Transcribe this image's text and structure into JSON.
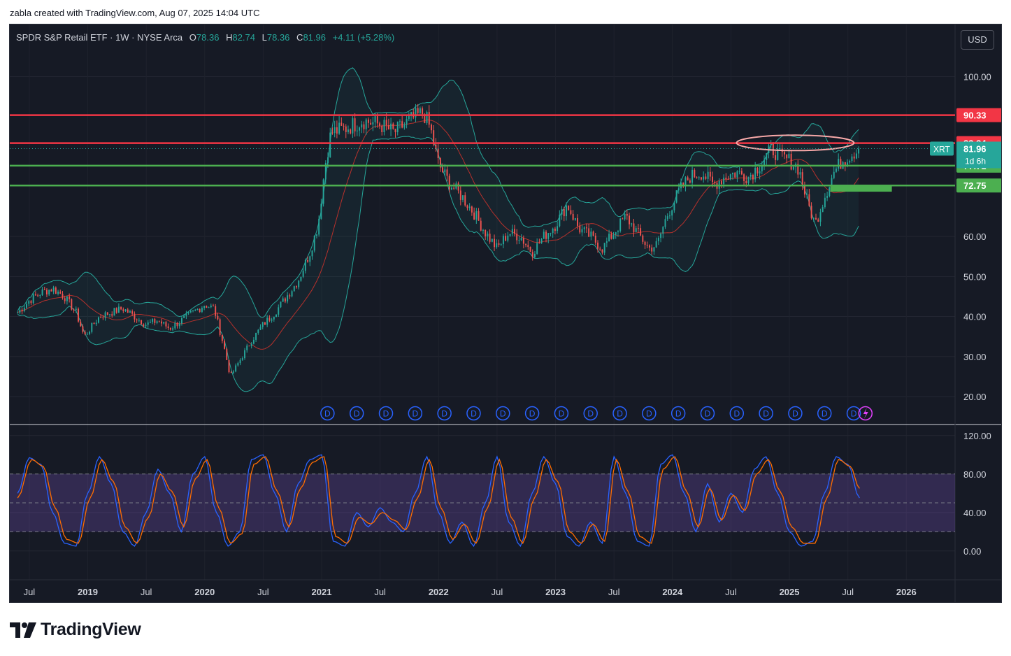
{
  "header": {
    "attribution": "zabla created with TradingView.com, Aug 07, 2025 14:04 UTC"
  },
  "legend": {
    "symbol": "SPDR S&P Retail ETF · 1W · NYSE Arca",
    "open_label": "O",
    "open": "78.36",
    "high_label": "H",
    "high": "82.74",
    "low_label": "L",
    "low": "78.36",
    "close_label": "C",
    "close": "81.96",
    "change": "+4.11 (+5.28%)"
  },
  "toolbar": {
    "currency_label": "USD"
  },
  "brand": {
    "name": "TradingView"
  },
  "colors": {
    "background": "#161a25",
    "up": "#26a69a",
    "down": "#ef5350",
    "resistance": "#f23645",
    "support": "#4caf50",
    "bollinger": "#26a69a",
    "basis": "#b7312c",
    "k_line": "#2962ff",
    "d_line": "#ff6d00",
    "rsi_band": "#7e57c2"
  },
  "chart_data": [
    {
      "type": "candlestick",
      "title": "",
      "y_ticks": [
        "100.00",
        "60.00",
        "50.00",
        "40.00",
        "30.00",
        "20.00"
      ],
      "ylim": [
        13,
        113
      ],
      "x_ticks": [
        "Jul",
        "2019",
        "Jul",
        "2020",
        "Jul",
        "2021",
        "Jul",
        "2022",
        "Jul",
        "2023",
        "Jul",
        "2024",
        "Jul",
        "2025",
        "Jul",
        "2026"
      ],
      "x_tick_dates": [
        "2018-07",
        "2019-01",
        "2019-07",
        "2020-01",
        "2020-07",
        "2021-01",
        "2021-07",
        "2022-01",
        "2022-07",
        "2023-01",
        "2023-07",
        "2024-01",
        "2024-07",
        "2025-01",
        "2025-07",
        "2026-01"
      ],
      "xlim": [
        "2018-05",
        "2026-06"
      ],
      "horizontal_levels": [
        {
          "value": 90.33,
          "label": "90.33",
          "color": "#f23645"
        },
        {
          "value": 83.34,
          "label": "83.34",
          "color": "#f23645"
        },
        {
          "value": 77.71,
          "label": "77.71",
          "color": "#4caf50"
        },
        {
          "value": 72.75,
          "label": "72.75",
          "color": "#4caf50"
        }
      ],
      "last_price": {
        "symbol": "XRT",
        "value": 81.96,
        "label": "81.96",
        "countdown": "1d 6h"
      },
      "price_series": [
        [
          2018.4,
          41
        ],
        [
          2018.5,
          44
        ],
        [
          2018.6,
          46
        ],
        [
          2018.7,
          47
        ],
        [
          2018.8,
          45
        ],
        [
          2018.9,
          41
        ],
        [
          2018.97,
          35
        ],
        [
          2019.1,
          40
        ],
        [
          2019.2,
          41
        ],
        [
          2019.3,
          42
        ],
        [
          2019.4,
          40
        ],
        [
          2019.5,
          38
        ],
        [
          2019.6,
          39
        ],
        [
          2019.7,
          37
        ],
        [
          2019.8,
          39
        ],
        [
          2019.9,
          41
        ],
        [
          2020.0,
          43
        ],
        [
          2020.08,
          42
        ],
        [
          2020.16,
          33
        ],
        [
          2020.22,
          25
        ],
        [
          2020.3,
          29
        ],
        [
          2020.4,
          34
        ],
        [
          2020.5,
          38
        ],
        [
          2020.6,
          41
        ],
        [
          2020.7,
          45
        ],
        [
          2020.8,
          49
        ],
        [
          2020.9,
          56
        ],
        [
          2020.97,
          63
        ],
        [
          2021.03,
          78
        ],
        [
          2021.08,
          86
        ],
        [
          2021.2,
          87
        ],
        [
          2021.35,
          89
        ],
        [
          2021.5,
          88
        ],
        [
          2021.62,
          86
        ],
        [
          2021.75,
          89
        ],
        [
          2021.87,
          91
        ],
        [
          2021.93,
          87
        ],
        [
          2022.0,
          78
        ],
        [
          2022.1,
          73
        ],
        [
          2022.2,
          70
        ],
        [
          2022.3,
          66
        ],
        [
          2022.4,
          61
        ],
        [
          2022.5,
          57
        ],
        [
          2022.6,
          61
        ],
        [
          2022.7,
          60
        ],
        [
          2022.8,
          56
        ],
        [
          2022.9,
          60
        ],
        [
          2023.0,
          63
        ],
        [
          2023.1,
          68
        ],
        [
          2023.2,
          62
        ],
        [
          2023.3,
          60
        ],
        [
          2023.4,
          57
        ],
        [
          2023.5,
          61
        ],
        [
          2023.6,
          65
        ],
        [
          2023.7,
          61
        ],
        [
          2023.8,
          57
        ],
        [
          2023.87,
          58
        ],
        [
          2023.95,
          65
        ],
        [
          2024.05,
          71
        ],
        [
          2024.15,
          75
        ],
        [
          2024.25,
          76
        ],
        [
          2024.35,
          73
        ],
        [
          2024.45,
          75
        ],
        [
          2024.55,
          76
        ],
        [
          2024.65,
          75
        ],
        [
          2024.75,
          78
        ],
        [
          2024.85,
          82
        ],
        [
          2024.92,
          80
        ],
        [
          2025.0,
          79
        ],
        [
          2025.08,
          77
        ],
        [
          2025.15,
          69
        ],
        [
          2025.22,
          63
        ],
        [
          2025.3,
          70
        ],
        [
          2025.38,
          76
        ],
        [
          2025.45,
          79
        ],
        [
          2025.55,
          81
        ],
        [
          2025.6,
          81.96
        ]
      ]
    },
    {
      "type": "line",
      "title": "",
      "y_ticks": [
        "120.00",
        "80.00",
        "40.00",
        "0.00"
      ],
      "ylim": [
        -30,
        130
      ],
      "band": [
        20,
        80
      ],
      "series": [
        {
          "name": "",
          "color": "#2962ff",
          "values": [
            [
              2018.4,
              60
            ],
            [
              2018.5,
              97
            ],
            [
              2018.6,
              90
            ],
            [
              2018.7,
              40
            ],
            [
              2018.8,
              8
            ],
            [
              2018.9,
              5
            ],
            [
              2019.0,
              60
            ],
            [
              2019.1,
              98
            ],
            [
              2019.2,
              70
            ],
            [
              2019.3,
              20
            ],
            [
              2019.4,
              5
            ],
            [
              2019.5,
              40
            ],
            [
              2019.6,
              85
            ],
            [
              2019.7,
              60
            ],
            [
              2019.8,
              20
            ],
            [
              2019.9,
              80
            ],
            [
              2020.0,
              98
            ],
            [
              2020.1,
              40
            ],
            [
              2020.2,
              5
            ],
            [
              2020.3,
              20
            ],
            [
              2020.4,
              95
            ],
            [
              2020.5,
              100
            ],
            [
              2020.6,
              60
            ],
            [
              2020.7,
              20
            ],
            [
              2020.8,
              70
            ],
            [
              2020.9,
              95
            ],
            [
              2021.0,
              100
            ],
            [
              2021.1,
              10
            ],
            [
              2021.2,
              5
            ],
            [
              2021.3,
              40
            ],
            [
              2021.4,
              25
            ],
            [
              2021.5,
              45
            ],
            [
              2021.6,
              30
            ],
            [
              2021.7,
              20
            ],
            [
              2021.8,
              60
            ],
            [
              2021.9,
              98
            ],
            [
              2022.0,
              40
            ],
            [
              2022.1,
              8
            ],
            [
              2022.2,
              30
            ],
            [
              2022.3,
              5
            ],
            [
              2022.4,
              50
            ],
            [
              2022.5,
              98
            ],
            [
              2022.6,
              30
            ],
            [
              2022.7,
              5
            ],
            [
              2022.8,
              60
            ],
            [
              2022.9,
              98
            ],
            [
              2023.0,
              70
            ],
            [
              2023.1,
              15
            ],
            [
              2023.2,
              5
            ],
            [
              2023.3,
              30
            ],
            [
              2023.4,
              8
            ],
            [
              2023.5,
              98
            ],
            [
              2023.6,
              60
            ],
            [
              2023.7,
              10
            ],
            [
              2023.8,
              5
            ],
            [
              2023.9,
              90
            ],
            [
              2024.0,
              100
            ],
            [
              2024.1,
              60
            ],
            [
              2024.2,
              20
            ],
            [
              2024.3,
              70
            ],
            [
              2024.4,
              30
            ],
            [
              2024.5,
              60
            ],
            [
              2024.6,
              40
            ],
            [
              2024.7,
              85
            ],
            [
              2024.8,
              98
            ],
            [
              2024.9,
              60
            ],
            [
              2025.0,
              20
            ],
            [
              2025.1,
              5
            ],
            [
              2025.2,
              10
            ],
            [
              2025.3,
              60
            ],
            [
              2025.4,
              98
            ],
            [
              2025.5,
              90
            ],
            [
              2025.6,
              55
            ]
          ]
        },
        {
          "name": "",
          "color": "#ff6d00",
          "values": [
            [
              2018.4,
              55
            ],
            [
              2018.52,
              95
            ],
            [
              2018.62,
              88
            ],
            [
              2018.72,
              45
            ],
            [
              2018.82,
              12
            ],
            [
              2018.92,
              8
            ],
            [
              2019.02,
              55
            ],
            [
              2019.12,
              95
            ],
            [
              2019.22,
              72
            ],
            [
              2019.32,
              25
            ],
            [
              2019.42,
              8
            ],
            [
              2019.52,
              35
            ],
            [
              2019.62,
              80
            ],
            [
              2019.72,
              62
            ],
            [
              2019.82,
              25
            ],
            [
              2019.92,
              75
            ],
            [
              2020.02,
              95
            ],
            [
              2020.12,
              45
            ],
            [
              2020.22,
              8
            ],
            [
              2020.32,
              18
            ],
            [
              2020.42,
              90
            ],
            [
              2020.52,
              98
            ],
            [
              2020.62,
              62
            ],
            [
              2020.72,
              25
            ],
            [
              2020.82,
              65
            ],
            [
              2020.92,
              92
            ],
            [
              2021.02,
              98
            ],
            [
              2021.12,
              15
            ],
            [
              2021.22,
              8
            ],
            [
              2021.32,
              35
            ],
            [
              2021.42,
              28
            ],
            [
              2021.52,
              40
            ],
            [
              2021.62,
              32
            ],
            [
              2021.72,
              22
            ],
            [
              2021.82,
              55
            ],
            [
              2021.92,
              95
            ],
            [
              2022.02,
              45
            ],
            [
              2022.12,
              12
            ],
            [
              2022.22,
              28
            ],
            [
              2022.32,
              8
            ],
            [
              2022.42,
              45
            ],
            [
              2022.52,
              95
            ],
            [
              2022.62,
              35
            ],
            [
              2022.72,
              8
            ],
            [
              2022.82,
              55
            ],
            [
              2022.92,
              95
            ],
            [
              2023.02,
              72
            ],
            [
              2023.12,
              20
            ],
            [
              2023.22,
              8
            ],
            [
              2023.32,
              28
            ],
            [
              2023.42,
              10
            ],
            [
              2023.52,
              95
            ],
            [
              2023.62,
              62
            ],
            [
              2023.72,
              15
            ],
            [
              2023.82,
              8
            ],
            [
              2023.92,
              85
            ],
            [
              2024.02,
              98
            ],
            [
              2024.12,
              62
            ],
            [
              2024.22,
              25
            ],
            [
              2024.32,
              65
            ],
            [
              2024.42,
              32
            ],
            [
              2024.52,
              58
            ],
            [
              2024.62,
              42
            ],
            [
              2024.72,
              80
            ],
            [
              2024.82,
              95
            ],
            [
              2024.92,
              62
            ],
            [
              2025.02,
              25
            ],
            [
              2025.12,
              8
            ],
            [
              2025.22,
              8
            ],
            [
              2025.32,
              55
            ],
            [
              2025.42,
              95
            ],
            [
              2025.52,
              88
            ],
            [
              2025.6,
              65
            ]
          ]
        }
      ]
    }
  ]
}
